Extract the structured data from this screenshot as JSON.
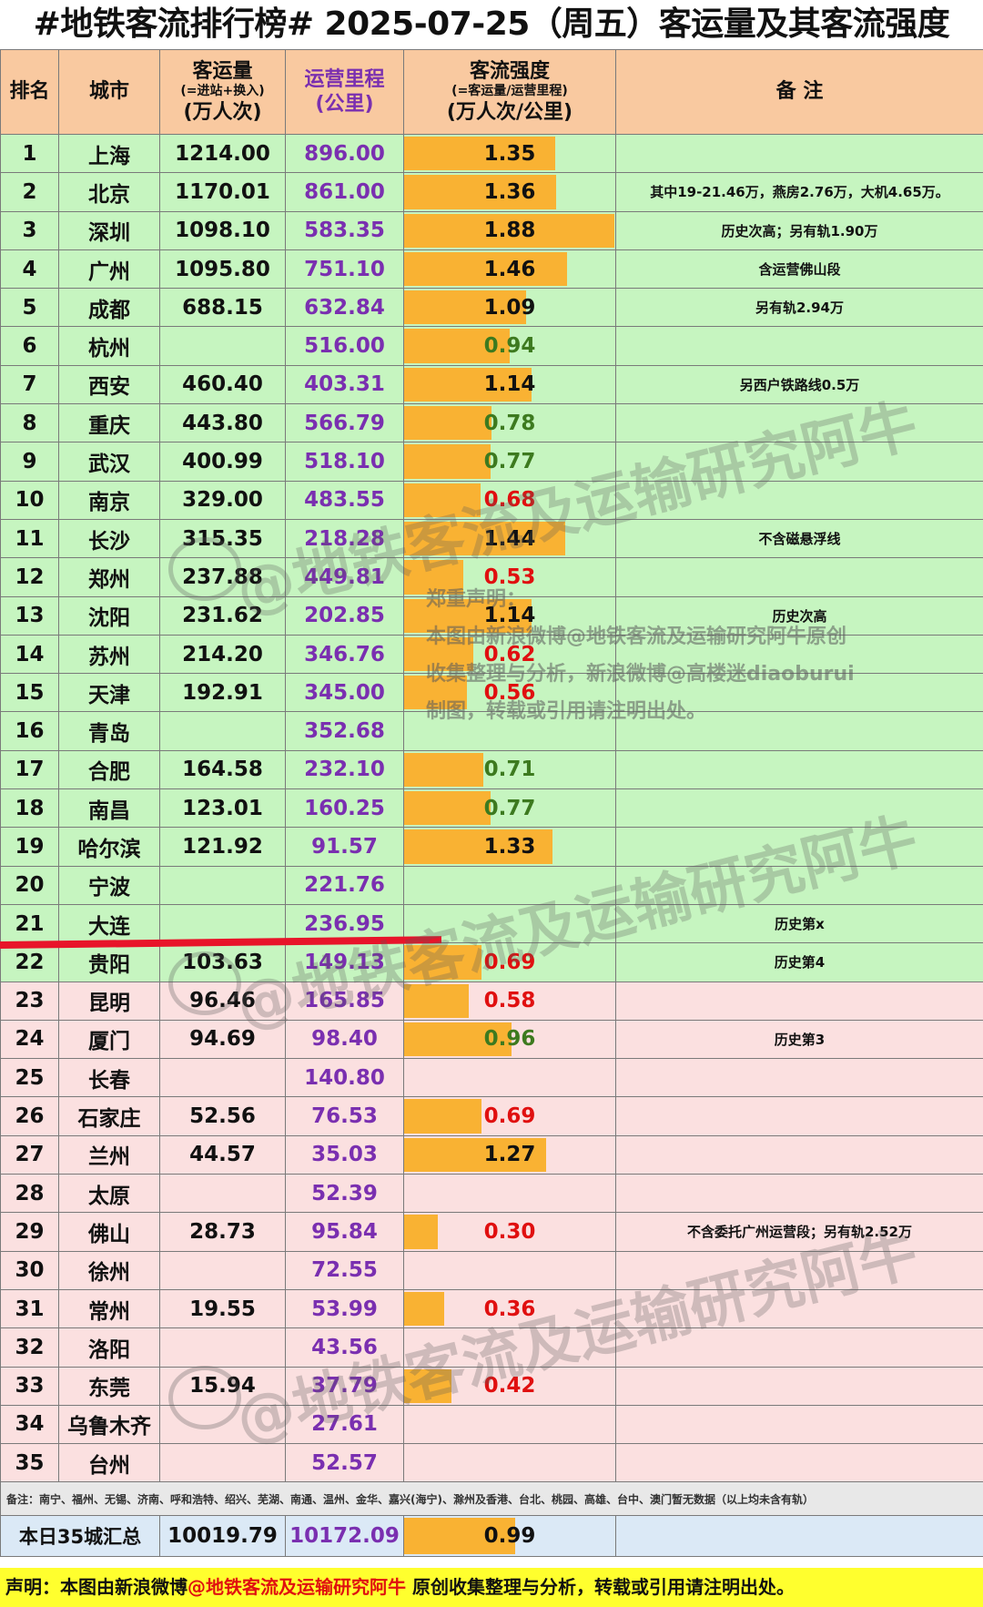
{
  "title": "#地铁客流排行榜# 2025-07-25（周五）客运量及其客流强度",
  "headers": {
    "rank": "排名",
    "city": "城市",
    "volume_line1": "客运量",
    "volume_line2": "(=进站+换入)",
    "volume_line3": "(万人次)",
    "km_line1": "运营里程",
    "km_line2": "(公里)",
    "intensity_line1": "客流强度",
    "intensity_line2": "(=客运量/运营里程)",
    "intensity_line3": "(万人次/公里)",
    "note": "备 注"
  },
  "colors": {
    "bar": "#f9b233",
    "green_row": "#c6f5c0",
    "pink_row": "#fbe0e0",
    "header": "#f9c9a0",
    "mileage_text": "#7a2fb0",
    "red_text": "#e01010",
    "green_text": "#3d7a1f"
  },
  "rows": [
    {
      "rank": "1",
      "city": "上海",
      "volume": "1214.00",
      "km": "896.00",
      "intensity": "1.35",
      "value": 1.35,
      "note": "",
      "band": "green"
    },
    {
      "rank": "2",
      "city": "北京",
      "volume": "1170.01",
      "km": "861.00",
      "intensity": "1.36",
      "value": 1.36,
      "note": "其中19-21.46万，燕房2.76万，大机4.65万。",
      "band": "green"
    },
    {
      "rank": "3",
      "city": "深圳",
      "volume": "1098.10",
      "km": "583.35",
      "intensity": "1.88",
      "value": 1.88,
      "note": "历史次高；另有轨1.90万",
      "band": "green"
    },
    {
      "rank": "4",
      "city": "广州",
      "volume": "1095.80",
      "km": "751.10",
      "intensity": "1.46",
      "value": 1.46,
      "note": "含运营佛山段",
      "band": "green"
    },
    {
      "rank": "5",
      "city": "成都",
      "volume": "688.15",
      "km": "632.84",
      "intensity": "1.09",
      "value": 1.09,
      "note": "另有轨2.94万",
      "band": "green"
    },
    {
      "rank": "6",
      "city": "杭州",
      "volume": "",
      "km": "516.00",
      "intensity": "0.94",
      "value": 0.94,
      "note": "",
      "band": "green"
    },
    {
      "rank": "7",
      "city": "西安",
      "volume": "460.40",
      "km": "403.31",
      "intensity": "1.14",
      "value": 1.14,
      "note": "另西户铁路线0.5万",
      "band": "green"
    },
    {
      "rank": "8",
      "city": "重庆",
      "volume": "443.80",
      "km": "566.79",
      "intensity": "0.78",
      "value": 0.78,
      "note": "",
      "band": "green"
    },
    {
      "rank": "9",
      "city": "武汉",
      "volume": "400.99",
      "km": "518.10",
      "intensity": "0.77",
      "value": 0.77,
      "note": "",
      "band": "green"
    },
    {
      "rank": "10",
      "city": "南京",
      "volume": "329.00",
      "km": "483.55",
      "intensity": "0.68",
      "value": 0.68,
      "note": "",
      "band": "green"
    },
    {
      "rank": "11",
      "city": "长沙",
      "volume": "315.35",
      "km": "218.28",
      "intensity": "1.44",
      "value": 1.44,
      "note": "不含磁悬浮线",
      "band": "green"
    },
    {
      "rank": "12",
      "city": "郑州",
      "volume": "237.88",
      "km": "449.81",
      "intensity": "0.53",
      "value": 0.53,
      "note": "",
      "band": "green"
    },
    {
      "rank": "13",
      "city": "沈阳",
      "volume": "231.62",
      "km": "202.85",
      "intensity": "1.14",
      "value": 1.14,
      "note": "历史次高",
      "band": "green"
    },
    {
      "rank": "14",
      "city": "苏州",
      "volume": "214.20",
      "km": "346.76",
      "intensity": "0.62",
      "value": 0.62,
      "note": "",
      "band": "green"
    },
    {
      "rank": "15",
      "city": "天津",
      "volume": "192.91",
      "km": "345.00",
      "intensity": "0.56",
      "value": 0.56,
      "note": "",
      "band": "green"
    },
    {
      "rank": "16",
      "city": "青岛",
      "volume": "",
      "km": "352.68",
      "intensity": "",
      "value": 0,
      "note": "",
      "band": "green"
    },
    {
      "rank": "17",
      "city": "合肥",
      "volume": "164.58",
      "km": "232.10",
      "intensity": "0.71",
      "value": 0.71,
      "note": "",
      "band": "green"
    },
    {
      "rank": "18",
      "city": "南昌",
      "volume": "123.01",
      "km": "160.25",
      "intensity": "0.77",
      "value": 0.77,
      "note": "",
      "band": "green"
    },
    {
      "rank": "19",
      "city": "哈尔滨",
      "volume": "121.92",
      "km": "91.57",
      "intensity": "1.33",
      "value": 1.33,
      "note": "",
      "band": "green"
    },
    {
      "rank": "20",
      "city": "宁波",
      "volume": "",
      "km": "221.76",
      "intensity": "",
      "value": 0,
      "note": "",
      "band": "green"
    },
    {
      "rank": "21",
      "city": "大连",
      "volume": "",
      "km": "236.95",
      "intensity": "",
      "value": 0,
      "note": "历史第x",
      "band": "green"
    },
    {
      "rank": "22",
      "city": "贵阳",
      "volume": "103.63",
      "km": "149.13",
      "intensity": "0.69",
      "value": 0.69,
      "note": "历史第4",
      "band": "green"
    },
    {
      "rank": "23",
      "city": "昆明",
      "volume": "96.46",
      "km": "165.85",
      "intensity": "0.58",
      "value": 0.58,
      "note": "",
      "band": "pink"
    },
    {
      "rank": "24",
      "city": "厦门",
      "volume": "94.69",
      "km": "98.40",
      "intensity": "0.96",
      "value": 0.96,
      "note": "历史第3",
      "band": "pink"
    },
    {
      "rank": "25",
      "city": "长春",
      "volume": "",
      "km": "140.80",
      "intensity": "",
      "value": 0,
      "note": "",
      "band": "pink"
    },
    {
      "rank": "26",
      "city": "石家庄",
      "volume": "52.56",
      "km": "76.53",
      "intensity": "0.69",
      "value": 0.69,
      "note": "",
      "band": "pink"
    },
    {
      "rank": "27",
      "city": "兰州",
      "volume": "44.57",
      "km": "35.03",
      "intensity": "1.27",
      "value": 1.27,
      "note": "",
      "band": "pink"
    },
    {
      "rank": "28",
      "city": "太原",
      "volume": "",
      "km": "52.39",
      "intensity": "",
      "value": 0,
      "note": "",
      "band": "pink"
    },
    {
      "rank": "29",
      "city": "佛山",
      "volume": "28.73",
      "km": "95.84",
      "intensity": "0.30",
      "value": 0.3,
      "note": "不含委托广州运营段；另有轨2.52万",
      "band": "pink"
    },
    {
      "rank": "30",
      "city": "徐州",
      "volume": "",
      "km": "72.55",
      "intensity": "",
      "value": 0,
      "note": "",
      "band": "pink"
    },
    {
      "rank": "31",
      "city": "常州",
      "volume": "19.55",
      "km": "53.99",
      "intensity": "0.36",
      "value": 0.36,
      "note": "",
      "band": "pink"
    },
    {
      "rank": "32",
      "city": "洛阳",
      "volume": "",
      "km": "43.56",
      "intensity": "",
      "value": 0,
      "note": "",
      "band": "pink"
    },
    {
      "rank": "33",
      "city": "东莞",
      "volume": "15.94",
      "km": "37.79",
      "intensity": "0.42",
      "value": 0.42,
      "note": "",
      "band": "pink"
    },
    {
      "rank": "34",
      "city": "乌鲁木齐",
      "volume": "",
      "km": "27.61",
      "intensity": "",
      "value": 0,
      "note": "",
      "band": "pink"
    },
    {
      "rank": "35",
      "city": "台州",
      "volume": "",
      "km": "52.57",
      "intensity": "",
      "value": 0,
      "note": "",
      "band": "pink"
    }
  ],
  "intensity_scale_max": 1.88,
  "footnote": "备注：南宁、福州、无锡、济南、呼和浩特、绍兴、芜湖、南通、温州、金华、嘉兴(海宁)、滁州及香港、台北、桃园、高雄、台中、澳门暂无数据（以上均未含有轨）",
  "total": {
    "label": "本日35城汇总",
    "volume": "10019.79",
    "km": "10172.09",
    "intensity": "0.99",
    "value": 0.99
  },
  "statement": {
    "prefix": "声明：本图由新浪微博",
    "highlight": "@地铁客流及运输研究阿牛",
    "suffix": " 原创收集整理与分析，转载或引用请注明出处。"
  },
  "watermark": {
    "text": "@地铁客流及运输研究阿牛",
    "disclaimer_1": "郑重声明：",
    "disclaimer_2": "本图由新浪微博@地铁客流及运输研究阿牛原创",
    "disclaimer_3": "收集整理与分析，新浪微博@高楼迷diaoburui",
    "disclaimer_4": "制图，转载或引用请注明出处。"
  }
}
